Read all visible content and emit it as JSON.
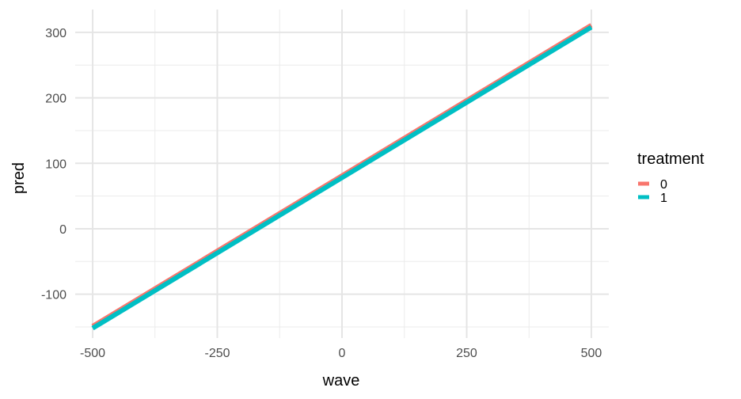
{
  "chart_data": {
    "type": "line",
    "xlabel": "wave",
    "ylabel": "pred",
    "xlim": [
      -535,
      535
    ],
    "ylim": [
      -167,
      335
    ],
    "x_ticks": [
      -500,
      -250,
      0,
      250,
      500
    ],
    "x_tick_labels": [
      "-500",
      "-250",
      "0",
      "250",
      "500"
    ],
    "y_ticks": [
      -100,
      0,
      100,
      200,
      300
    ],
    "y_tick_labels": [
      "-100",
      "0",
      "100",
      "200",
      "300"
    ],
    "grid": true,
    "legend": {
      "title": "treatment",
      "position": "right"
    },
    "series": [
      {
        "name": "0",
        "color": "#F8766D",
        "x": [
          -500,
          500
        ],
        "y": [
          -149,
          311
        ]
      },
      {
        "name": "1",
        "color": "#00BFC4",
        "x": [
          -500,
          500
        ],
        "y": [
          -152,
          308
        ]
      }
    ]
  }
}
